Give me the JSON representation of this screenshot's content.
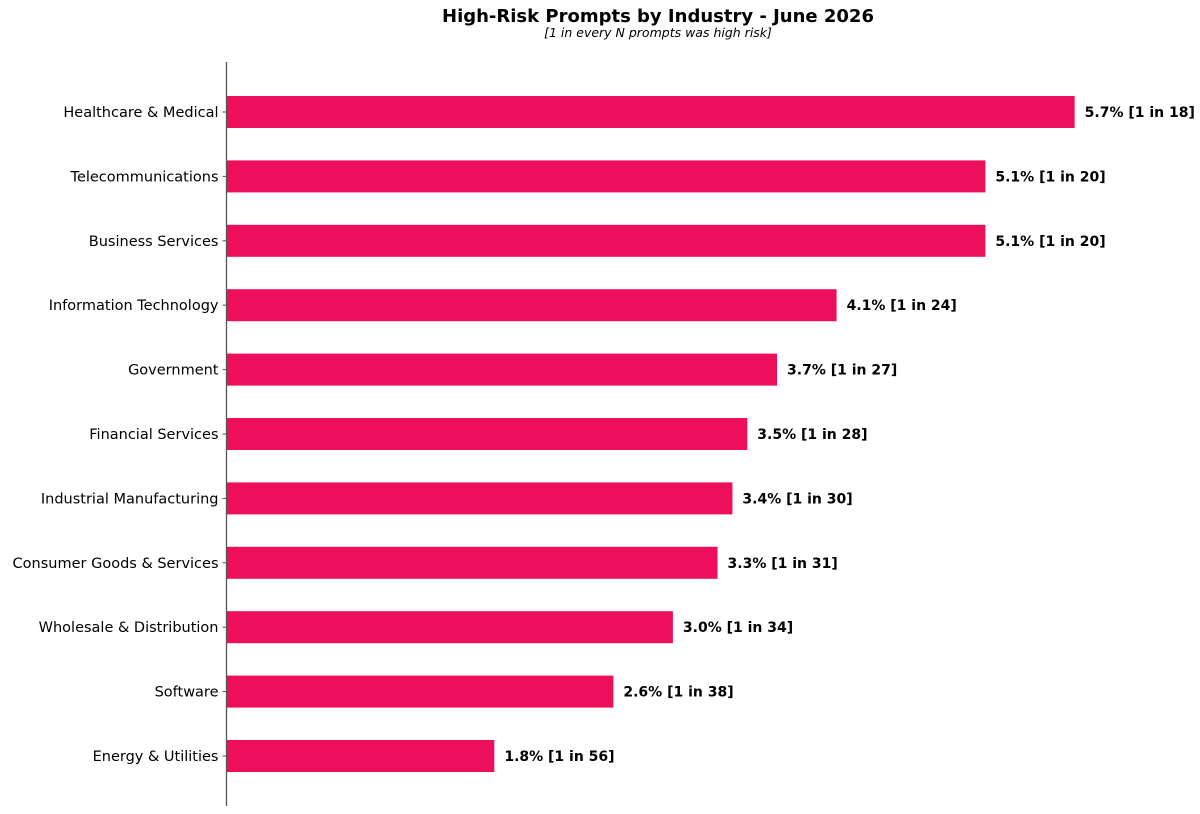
{
  "chart_data": {
    "type": "bar",
    "orientation": "horizontal",
    "title": "High-Risk Prompts by Industry - June 2026",
    "subtitle": "[1 in every N prompts was high risk]",
    "xlabel": "",
    "ylabel": "",
    "bar_color": "#ee0f5c",
    "grid": false,
    "categories": [
      "Healthcare & Medical",
      "Telecommunications",
      "Business Services",
      "Information Technology",
      "Government",
      "Financial Services",
      "Industrial Manufacturing",
      "Consumer Goods & Services",
      "Wholesale & Distribution",
      "Software",
      "Energy & Utilities"
    ],
    "values": [
      5.7,
      5.1,
      5.1,
      4.1,
      3.7,
      3.5,
      3.4,
      3.3,
      3.0,
      2.6,
      1.8
    ],
    "value_labels": [
      "5.7% [1 in 18]",
      "5.1% [1 in 20]",
      "5.1% [1 in 20]",
      "4.1% [1 in 24]",
      "3.7% [1 in 27]",
      "3.5% [1 in 28]",
      "3.4% [1 in 30]",
      "3.3% [1 in 31]",
      "3.0% [1 in 34]",
      "2.6% [1 in 38]",
      "1.8% [1 in 56]"
    ]
  }
}
